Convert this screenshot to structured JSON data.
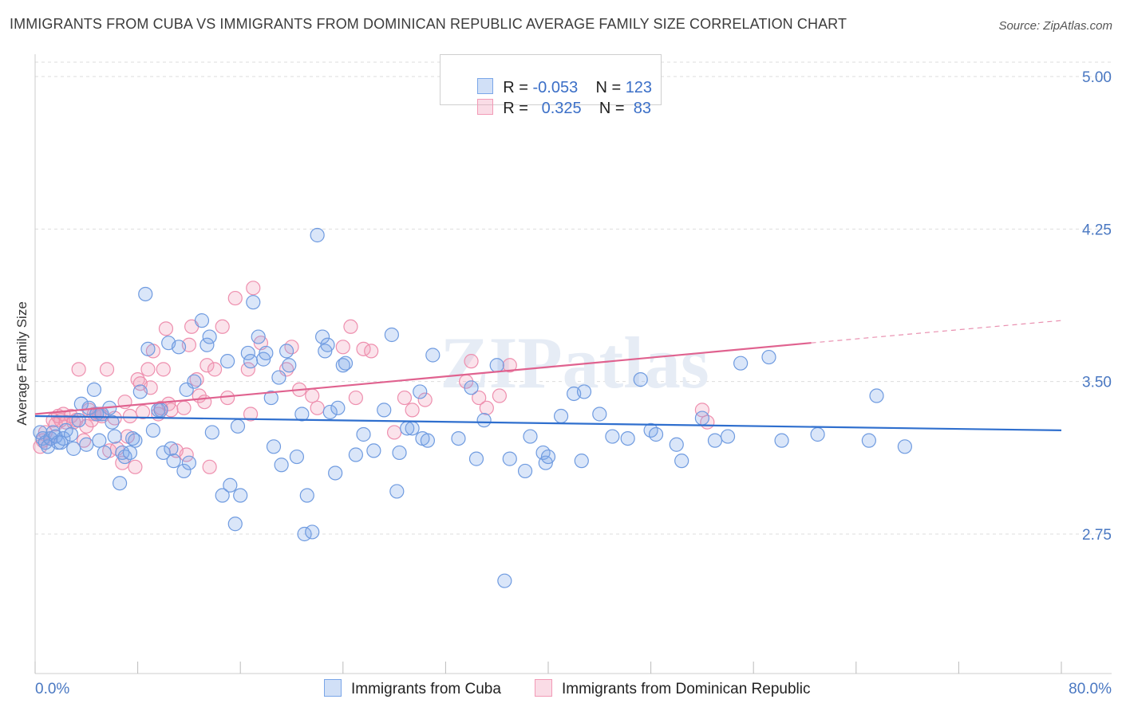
{
  "title": "IMMIGRANTS FROM CUBA VS IMMIGRANTS FROM DOMINICAN REPUBLIC AVERAGE FAMILY SIZE CORRELATION CHART",
  "source": "Source: ZipAtlas.com",
  "watermark": "ZIPatlas",
  "legend": {
    "rows": [
      {
        "r_label": "R =",
        "r_value": "-0.053",
        "n_label": "N =",
        "n_value": "123",
        "color": "#7aa6e8"
      },
      {
        "r_label": "R =",
        "r_value": "0.325",
        "n_label": "N =",
        "n_value": "83",
        "color": "#f29ab6"
      }
    ]
  },
  "colors": {
    "cuba_fill": "rgba(122,166,232,0.28)",
    "cuba_stroke": "#6f9be0",
    "cuba_line": "#2f6fce",
    "dr_fill": "rgba(242,154,182,0.28)",
    "dr_stroke": "#ee8fae",
    "dr_line": "#e0628f",
    "axis_text": "#4a78c2",
    "grid": "#dddddd"
  },
  "chart_data": {
    "type": "scatter",
    "title": "IMMIGRANTS FROM CUBA VS IMMIGRANTS FROM DOMINICAN REPUBLIC AVERAGE FAMILY SIZE CORRELATION CHART",
    "xlabel": "",
    "ylabel": "Average Family Size",
    "xlim": [
      0,
      80
    ],
    "ylim": [
      2.0,
      5.1
    ],
    "x_tick_labels": [
      "0.0%",
      "80.0%"
    ],
    "y_ticks": [
      2.75,
      3.5,
      4.25,
      5.0
    ],
    "y_tick_labels": [
      "2.75",
      "3.50",
      "4.25",
      "5.00"
    ],
    "grid": true,
    "legend_position": "top-center",
    "series": [
      {
        "name": "Immigrants from Cuba",
        "r": -0.053,
        "n": 123,
        "trend": {
          "x": [
            0,
            80
          ],
          "y": [
            3.33,
            3.26
          ]
        },
        "points": [
          [
            0.4,
            3.25
          ],
          [
            0.6,
            3.22
          ],
          [
            0.8,
            3.2
          ],
          [
            1.0,
            3.18
          ],
          [
            1.2,
            3.22
          ],
          [
            1.4,
            3.25
          ],
          [
            1.6,
            3.23
          ],
          [
            1.8,
            3.2
          ],
          [
            2.0,
            3.2
          ],
          [
            2.2,
            3.22
          ],
          [
            2.4,
            3.26
          ],
          [
            2.8,
            3.24
          ],
          [
            3.0,
            3.17
          ],
          [
            3.4,
            3.31
          ],
          [
            3.6,
            3.39
          ],
          [
            4.0,
            3.19
          ],
          [
            4.2,
            3.37
          ],
          [
            4.6,
            3.46
          ],
          [
            4.8,
            3.34
          ],
          [
            5.0,
            3.21
          ],
          [
            5.2,
            3.34
          ],
          [
            5.4,
            3.15
          ],
          [
            5.8,
            3.37
          ],
          [
            6.0,
            3.3
          ],
          [
            6.2,
            3.23
          ],
          [
            6.6,
            3.0
          ],
          [
            6.8,
            3.15
          ],
          [
            7.0,
            3.13
          ],
          [
            7.4,
            3.15
          ],
          [
            7.6,
            3.22
          ],
          [
            7.8,
            3.21
          ],
          [
            8.2,
            3.45
          ],
          [
            8.6,
            3.93
          ],
          [
            8.8,
            3.66
          ],
          [
            9.2,
            3.26
          ],
          [
            9.6,
            3.36
          ],
          [
            9.8,
            3.36
          ],
          [
            10.0,
            3.15
          ],
          [
            10.4,
            3.69
          ],
          [
            10.6,
            3.17
          ],
          [
            10.8,
            3.11
          ],
          [
            11.2,
            3.67
          ],
          [
            11.6,
            3.06
          ],
          [
            11.8,
            3.46
          ],
          [
            12.0,
            3.1
          ],
          [
            12.4,
            3.5
          ],
          [
            13.0,
            3.8
          ],
          [
            13.4,
            3.68
          ],
          [
            13.6,
            3.72
          ],
          [
            13.8,
            3.25
          ],
          [
            14.6,
            2.94
          ],
          [
            15.0,
            3.6
          ],
          [
            15.2,
            2.99
          ],
          [
            15.6,
            2.8
          ],
          [
            15.8,
            3.28
          ],
          [
            16.0,
            2.94
          ],
          [
            16.6,
            3.64
          ],
          [
            16.8,
            3.6
          ],
          [
            17.0,
            3.89
          ],
          [
            17.4,
            3.72
          ],
          [
            17.8,
            3.61
          ],
          [
            18.0,
            3.64
          ],
          [
            18.4,
            3.42
          ],
          [
            18.6,
            3.18
          ],
          [
            19.0,
            3.52
          ],
          [
            19.2,
            3.09
          ],
          [
            19.8,
            3.58
          ],
          [
            19.6,
            3.65
          ],
          [
            20.4,
            3.13
          ],
          [
            20.8,
            3.34
          ],
          [
            21.0,
            2.75
          ],
          [
            21.2,
            2.94
          ],
          [
            21.6,
            2.76
          ],
          [
            22.0,
            4.22
          ],
          [
            22.4,
            3.72
          ],
          [
            22.6,
            3.65
          ],
          [
            22.8,
            3.68
          ],
          [
            23.0,
            3.35
          ],
          [
            23.4,
            3.05
          ],
          [
            23.6,
            3.37
          ],
          [
            24.0,
            3.58
          ],
          [
            24.2,
            3.59
          ],
          [
            25.0,
            3.14
          ],
          [
            25.6,
            3.24
          ],
          [
            26.4,
            3.16
          ],
          [
            27.2,
            3.36
          ],
          [
            27.8,
            3.73
          ],
          [
            28.2,
            2.96
          ],
          [
            28.4,
            3.15
          ],
          [
            29.0,
            3.27
          ],
          [
            29.4,
            3.27
          ],
          [
            30.0,
            3.45
          ],
          [
            30.2,
            3.22
          ],
          [
            30.6,
            3.21
          ],
          [
            31.0,
            3.63
          ],
          [
            33.0,
            3.22
          ],
          [
            34.0,
            3.47
          ],
          [
            34.4,
            3.12
          ],
          [
            35.0,
            3.31
          ],
          [
            36.0,
            3.58
          ],
          [
            36.6,
            2.52
          ],
          [
            37.0,
            3.12
          ],
          [
            38.2,
            3.06
          ],
          [
            38.6,
            3.23
          ],
          [
            39.6,
            3.15
          ],
          [
            39.8,
            3.1
          ],
          [
            40.0,
            3.13
          ],
          [
            41.0,
            3.33
          ],
          [
            42.0,
            3.44
          ],
          [
            42.6,
            3.11
          ],
          [
            42.8,
            3.45
          ],
          [
            44.0,
            3.34
          ],
          [
            45.0,
            3.23
          ],
          [
            46.2,
            3.22
          ],
          [
            47.2,
            3.51
          ],
          [
            48.0,
            3.26
          ],
          [
            48.4,
            3.24
          ],
          [
            50.0,
            3.19
          ],
          [
            50.4,
            3.11
          ],
          [
            52.0,
            3.32
          ],
          [
            53.0,
            3.21
          ],
          [
            54.0,
            3.23
          ],
          [
            55.0,
            3.59
          ],
          [
            57.2,
            3.62
          ],
          [
            58.2,
            3.21
          ],
          [
            61.0,
            3.24
          ],
          [
            65.0,
            3.21
          ],
          [
            65.6,
            3.43
          ],
          [
            67.8,
            3.18
          ]
        ]
      },
      {
        "name": "Immigrants from Dominican Republic",
        "r": 0.325,
        "n": 83,
        "trend": {
          "x": [
            0,
            60.5
          ],
          "y": [
            3.34,
            3.69
          ]
        },
        "trend_dashed": {
          "x": [
            60.5,
            80
          ],
          "y": [
            3.69,
            3.8
          ]
        },
        "points": [
          [
            0.4,
            3.18
          ],
          [
            0.6,
            3.21
          ],
          [
            0.8,
            3.25
          ],
          [
            1.2,
            3.22
          ],
          [
            1.4,
            3.31
          ],
          [
            1.6,
            3.29
          ],
          [
            1.8,
            3.33
          ],
          [
            2.0,
            3.31
          ],
          [
            2.2,
            3.34
          ],
          [
            2.4,
            3.3
          ],
          [
            2.8,
            3.33
          ],
          [
            3.0,
            3.3
          ],
          [
            3.2,
            3.31
          ],
          [
            3.4,
            3.56
          ],
          [
            3.8,
            3.21
          ],
          [
            4.0,
            3.28
          ],
          [
            4.2,
            3.36
          ],
          [
            4.4,
            3.31
          ],
          [
            4.6,
            3.34
          ],
          [
            4.8,
            3.34
          ],
          [
            5.0,
            3.34
          ],
          [
            5.2,
            3.33
          ],
          [
            5.6,
            3.56
          ],
          [
            5.8,
            3.16
          ],
          [
            6.2,
            3.32
          ],
          [
            6.4,
            3.17
          ],
          [
            6.8,
            3.1
          ],
          [
            7.0,
            3.4
          ],
          [
            7.2,
            3.23
          ],
          [
            7.4,
            3.33
          ],
          [
            7.8,
            3.08
          ],
          [
            8.0,
            3.51
          ],
          [
            8.2,
            3.49
          ],
          [
            8.4,
            3.35
          ],
          [
            8.8,
            3.56
          ],
          [
            9.0,
            3.47
          ],
          [
            9.2,
            3.65
          ],
          [
            9.6,
            3.34
          ],
          [
            9.8,
            3.37
          ],
          [
            10.0,
            3.56
          ],
          [
            10.2,
            3.76
          ],
          [
            10.4,
            3.39
          ],
          [
            10.6,
            3.36
          ],
          [
            11.0,
            3.16
          ],
          [
            11.6,
            3.37
          ],
          [
            11.8,
            3.14
          ],
          [
            12.0,
            3.68
          ],
          [
            12.2,
            3.77
          ],
          [
            12.6,
            3.51
          ],
          [
            12.8,
            3.43
          ],
          [
            13.2,
            3.4
          ],
          [
            13.4,
            3.58
          ],
          [
            13.6,
            3.08
          ],
          [
            14.0,
            3.56
          ],
          [
            14.6,
            3.77
          ],
          [
            15.0,
            3.42
          ],
          [
            15.6,
            3.91
          ],
          [
            16.6,
            3.56
          ],
          [
            16.8,
            3.34
          ],
          [
            17.0,
            3.96
          ],
          [
            17.6,
            3.69
          ],
          [
            19.6,
            3.56
          ],
          [
            20.0,
            3.67
          ],
          [
            20.6,
            3.46
          ],
          [
            21.6,
            3.43
          ],
          [
            22.0,
            3.37
          ],
          [
            24.0,
            3.67
          ],
          [
            24.6,
            3.77
          ],
          [
            25.0,
            3.42
          ],
          [
            25.6,
            3.66
          ],
          [
            26.2,
            3.65
          ],
          [
            28.0,
            3.25
          ],
          [
            28.8,
            3.42
          ],
          [
            29.4,
            3.36
          ],
          [
            30.4,
            3.41
          ],
          [
            33.6,
            3.5
          ],
          [
            34.0,
            3.6
          ],
          [
            34.6,
            3.42
          ],
          [
            35.2,
            3.37
          ],
          [
            36.2,
            3.43
          ],
          [
            37.0,
            3.58
          ],
          [
            52.0,
            3.36
          ],
          [
            52.4,
            3.3
          ]
        ]
      }
    ]
  },
  "bottom_legend": [
    {
      "label": "Immigrants from Cuba",
      "color": "#7aa6e8"
    },
    {
      "label": "Immigrants from Dominican Republic",
      "color": "#f29ab6"
    }
  ]
}
